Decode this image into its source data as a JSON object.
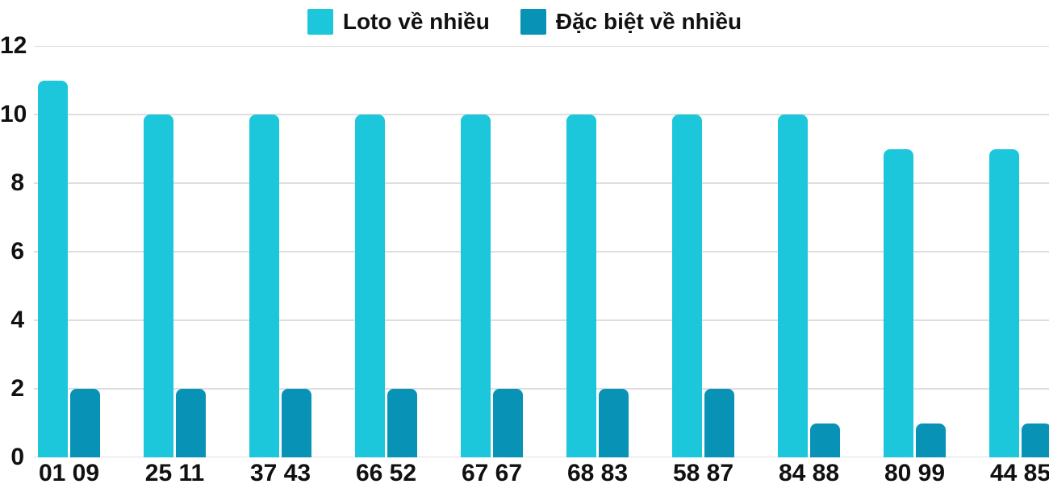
{
  "chart_data": {
    "type": "bar",
    "title": "",
    "xlabel": "",
    "ylabel": "",
    "categories": [
      "01 09",
      "25 11",
      "37 43",
      "66 52",
      "67 67",
      "68 83",
      "58 87",
      "84 88",
      "80 99",
      "44 85"
    ],
    "series": [
      {
        "name": "Loto về nhiều",
        "color": "#1CC7DB",
        "values": [
          11,
          10,
          10,
          10,
          10,
          10,
          10,
          10,
          9,
          9
        ]
      },
      {
        "name": "Đặc biệt về nhiều",
        "color": "#0792B6",
        "values": [
          2,
          2,
          2,
          2,
          2,
          2,
          2,
          1,
          1,
          1
        ]
      }
    ],
    "ylim": [
      0,
      12
    ],
    "yticks": [
      0,
      2,
      4,
      6,
      8,
      10,
      12
    ],
    "grid": true,
    "legend_position": "top"
  },
  "colors": {
    "gridline": "#DEDEDE",
    "text": "#111111",
    "background": "#FFFFFF"
  }
}
